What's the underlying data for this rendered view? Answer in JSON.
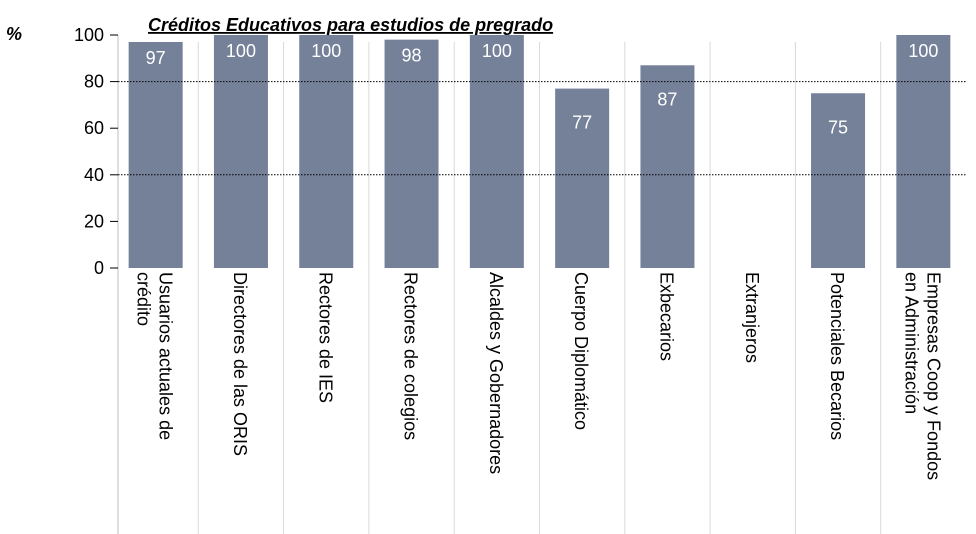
{
  "chart_data": {
    "type": "bar",
    "title": "Créditos Educativos para estudios de pregrado",
    "y_label": "%",
    "categories": [
      [
        "Usuarios actuales de",
        "crédito"
      ],
      [
        "Directores de las ORIS"
      ],
      [
        "Rectores de IES"
      ],
      [
        "Rectores de colegios"
      ],
      [
        "Alcaldes y Gobernadores"
      ],
      [
        "Cuerpo Diplomático"
      ],
      [
        "Exbecarios"
      ],
      [
        "Extranjeros"
      ],
      [
        "Potenciales Becarios"
      ],
      [
        "Empresas Coop y Fondos",
        "en Administración"
      ]
    ],
    "values": [
      97,
      100,
      100,
      98,
      100,
      77,
      87,
      null,
      75,
      100
    ],
    "color": "#748199",
    "ylim": [
      0,
      100
    ],
    "yticks": [
      0,
      20,
      40,
      60,
      80,
      100
    ],
    "gridlines": [
      40,
      80
    ]
  }
}
